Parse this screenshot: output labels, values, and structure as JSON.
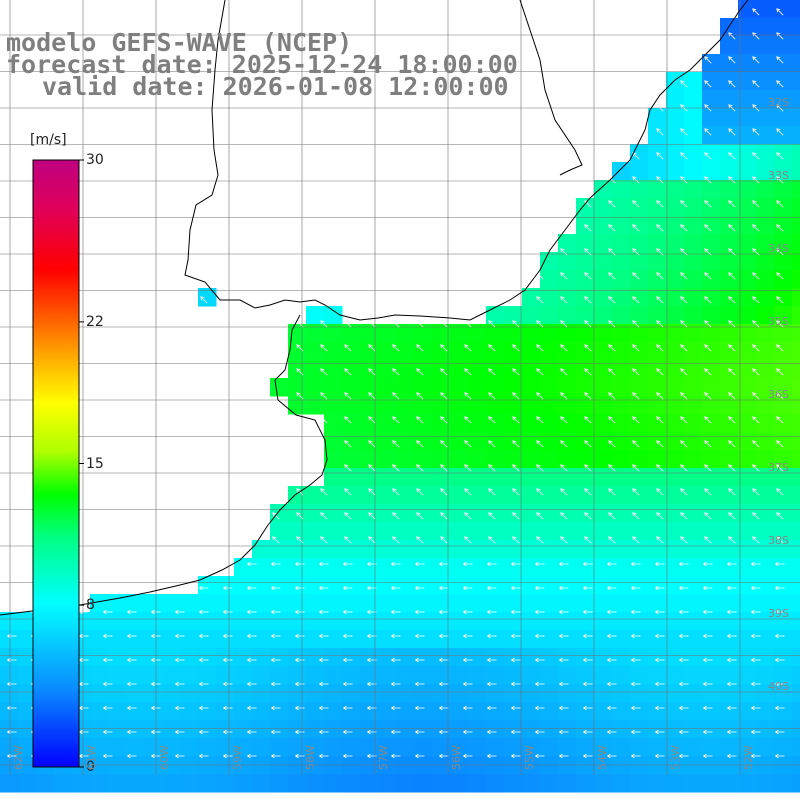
{
  "titles": {
    "model": "modelo GEFS-WAVE (NCEP)",
    "forecast": "forecast date: 2025-12-24 18:00:00",
    "valid": "valid date: 2026-01-08 12:00:00"
  },
  "colorbar": {
    "units": "[m/s]",
    "min": 0,
    "max": 30,
    "ticks": [
      {
        "value": 30,
        "label": "30"
      },
      {
        "value": 22,
        "label": "22"
      },
      {
        "value": 15,
        "label": "15"
      },
      {
        "value": 8,
        "label": "8"
      },
      {
        "value": 0,
        "label": "0"
      }
    ],
    "colors": [
      "#0000ff",
      "#0a8dff",
      "#00ffff",
      "#00ff80",
      "#00ff00",
      "#7fff00",
      "#ffff00",
      "#ffa500",
      "#ff5000",
      "#ff0000",
      "#e6005a",
      "#c00080"
    ]
  },
  "lat_labels": [
    "32S",
    "33S",
    "34S",
    "35S",
    "36S",
    "37S",
    "38S",
    "39S",
    "40S"
  ],
  "lon_labels": [
    "62W",
    "61W",
    "60W",
    "59W",
    "58W",
    "57W",
    "56W",
    "55W",
    "54W",
    "53W",
    "52W"
  ],
  "legend_colors": {
    "land": "#ffffff",
    "grid": "#707070",
    "coast": "#000000",
    "arrow": "#ffffff"
  }
}
